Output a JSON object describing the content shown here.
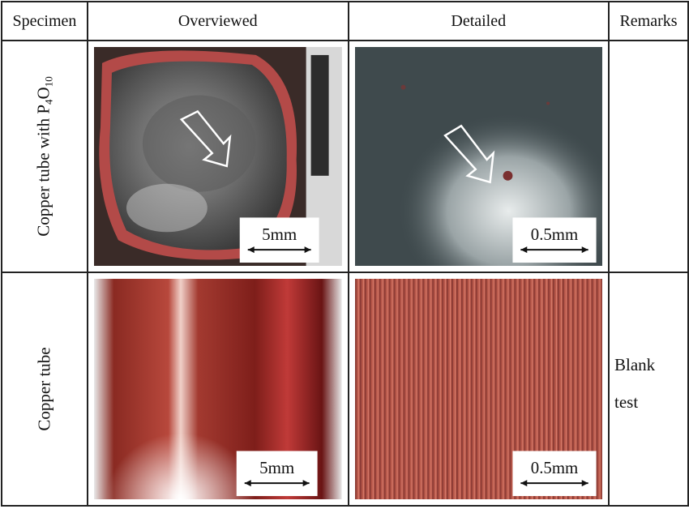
{
  "table": {
    "headers": [
      "Specimen",
      "Overviewed",
      "Detailed",
      "Remarks"
    ],
    "rows": [
      {
        "specimen": "Copper tube with P",
        "formula": {
          "sub1": "4",
          "mid": "O",
          "sub2": "10"
        },
        "overview_scale": "5mm",
        "detail_scale": "0.5mm",
        "remarks": ""
      },
      {
        "specimen": "Copper tube",
        "overview_scale": "5mm",
        "detail_scale": "0.5mm",
        "remarks_line1": "Blank",
        "remarks_line2": "test"
      }
    ]
  }
}
